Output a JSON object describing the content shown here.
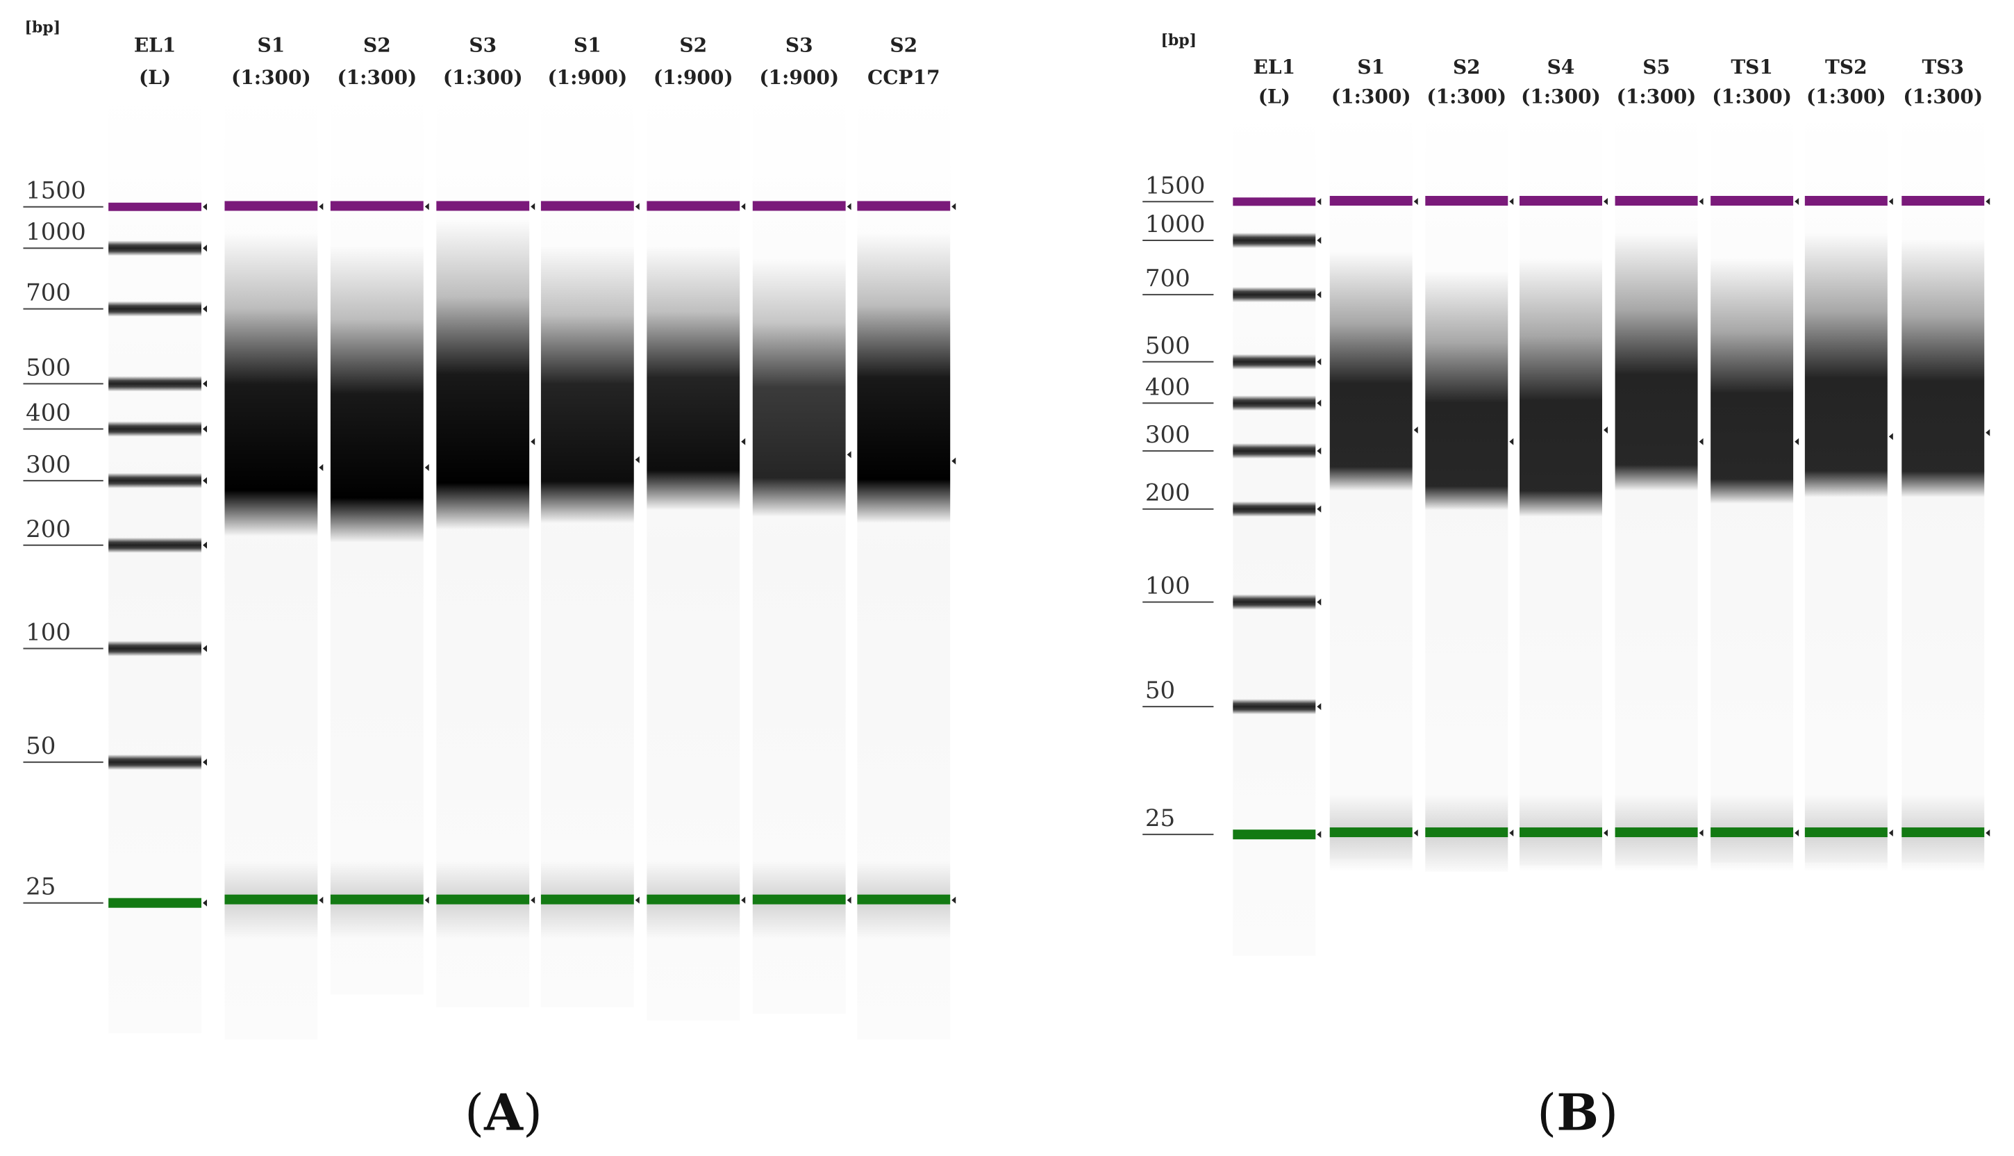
{
  "panels": [
    {
      "id": "A",
      "label": "A",
      "unit_label": "[bp]",
      "markers": [
        "1500",
        "1000",
        "700",
        "500",
        "400",
        "300",
        "200",
        "100",
        "50",
        "25"
      ],
      "lanes": [
        {
          "line1": "EL1",
          "line2": "(L)"
        },
        {
          "line1": "S1",
          "line2": "(1:300)"
        },
        {
          "line1": "S2",
          "line2": "(1:300)"
        },
        {
          "line1": "S3",
          "line2": "(1:300)"
        },
        {
          "line1": "S1",
          "line2": "(1:900)"
        },
        {
          "line1": "S2",
          "line2": "(1:900)"
        },
        {
          "line1": "S3",
          "line2": "(1:900)"
        },
        {
          "line1": "S2",
          "line2": "CCP17"
        }
      ]
    },
    {
      "id": "B",
      "label": "B",
      "unit_label": "[bp]",
      "markers": [
        "1500",
        "1000",
        "700",
        "500",
        "400",
        "300",
        "200",
        "100",
        "50",
        "25"
      ],
      "lanes": [
        {
          "line1": "EL1",
          "line2": "(L)"
        },
        {
          "line1": "S1",
          "line2": "(1:300)"
        },
        {
          "line1": "S2",
          "line2": "(1:300)"
        },
        {
          "line1": "S4",
          "line2": "(1:300)"
        },
        {
          "line1": "S5",
          "line2": "(1:300)"
        },
        {
          "line1": "TS1",
          "line2": "(1:300)"
        },
        {
          "line1": "TS2",
          "line2": "(1:300)"
        },
        {
          "line1": "TS3",
          "line2": "(1:300)"
        }
      ]
    }
  ],
  "colors": {
    "upper_marker": "#7a1a7a",
    "lower_marker": "#137a13",
    "band": "#222222",
    "smear": "#000000"
  }
}
